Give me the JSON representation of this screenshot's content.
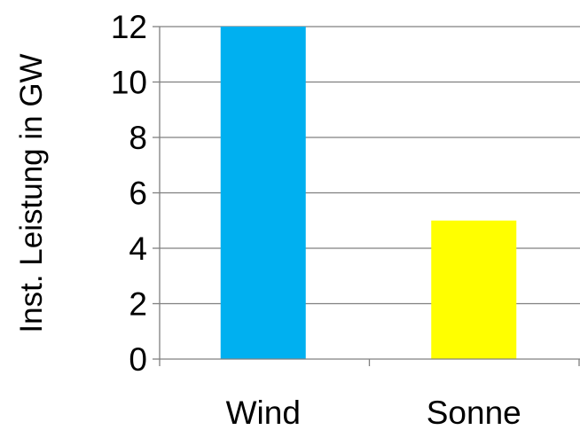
{
  "chart_data": {
    "type": "bar",
    "categories": [
      "Wind",
      "Sonne"
    ],
    "values": [
      12,
      5
    ],
    "bar_colors": [
      "#00B0F0",
      "#FFFF00"
    ],
    "ylabel": "Inst. Leistung in GW",
    "xlabel": "",
    "title": "",
    "ylim": [
      0,
      12
    ],
    "yticks": [
      0,
      2,
      4,
      6,
      8,
      10,
      12
    ],
    "grid": true,
    "grid_color": "#808080",
    "legend": false
  }
}
